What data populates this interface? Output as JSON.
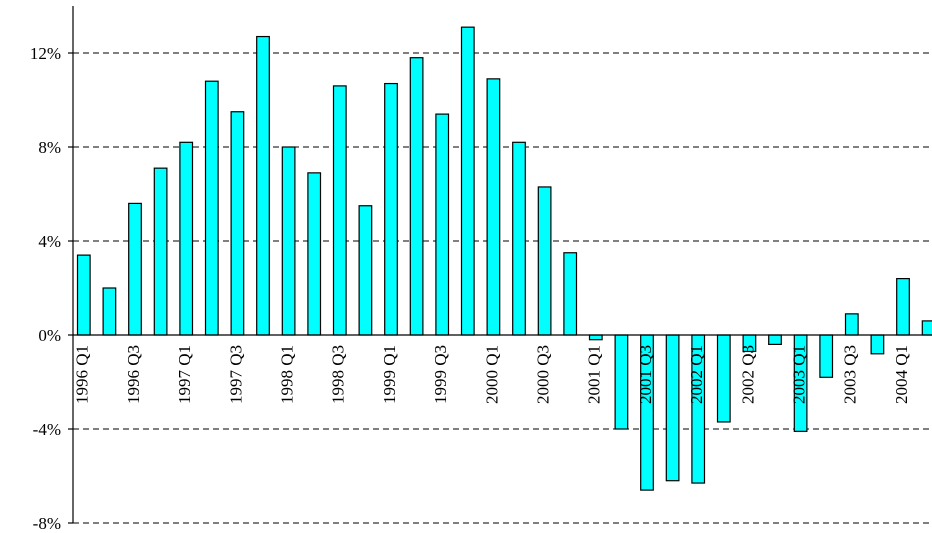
{
  "chart_data": {
    "type": "bar",
    "categories": [
      "1996 Q1",
      "1996 Q2",
      "1996 Q3",
      "1996 Q4",
      "1997 Q1",
      "1997 Q2",
      "1997 Q3",
      "1997 Q4",
      "1998 Q1",
      "1998 Q2",
      "1998 Q3",
      "1998 Q4",
      "1999 Q1",
      "1999 Q2",
      "1999 Q3",
      "1999 Q4",
      "2000 Q1",
      "2000 Q2",
      "2000 Q3",
      "2000 Q4",
      "2001 Q1",
      "2001 Q2",
      "2001 Q3",
      "2001 Q4",
      "2002 Q1",
      "2002 Q2",
      "2002 Q3",
      "2002 Q4",
      "2003 Q1",
      "2003 Q2",
      "2003 Q3",
      "2003 Q4",
      "2004 Q1",
      "2004 Q2"
    ],
    "x_tick_labels": [
      "1996 Q1",
      "1996 Q3",
      "1997 Q1",
      "1997 Q3",
      "1998 Q1",
      "1998 Q3",
      "1999 Q1",
      "1999 Q3",
      "2000 Q1",
      "2000 Q3",
      "2001 Q1",
      "2001 Q3",
      "2002 Q1",
      "2002 Q3",
      "2003 Q1",
      "2003 Q3",
      "2004 Q1"
    ],
    "values": [
      3.4,
      2.0,
      5.6,
      7.1,
      8.2,
      10.8,
      9.5,
      12.7,
      8.0,
      6.9,
      10.6,
      5.5,
      10.7,
      11.8,
      9.4,
      13.1,
      10.9,
      8.2,
      6.3,
      3.5,
      -0.2,
      -4.0,
      -6.6,
      -6.2,
      -6.3,
      -3.7,
      -0.7,
      -0.4,
      -4.1,
      -1.8,
      0.9,
      -0.8,
      2.4,
      0.6
    ],
    "y_ticks": [
      12,
      8,
      4,
      0,
      -4,
      -8
    ],
    "y_tick_labels": [
      "12%",
      "8%",
      "4%",
      "0%",
      "-4%",
      "-8%"
    ],
    "ylim": [
      -8,
      14
    ],
    "grid": true,
    "legend": "none",
    "colors": {
      "bar_fill": "#00FFFF",
      "bar_stroke": "#000000",
      "grid": "#000000",
      "axis": "#000000"
    }
  }
}
